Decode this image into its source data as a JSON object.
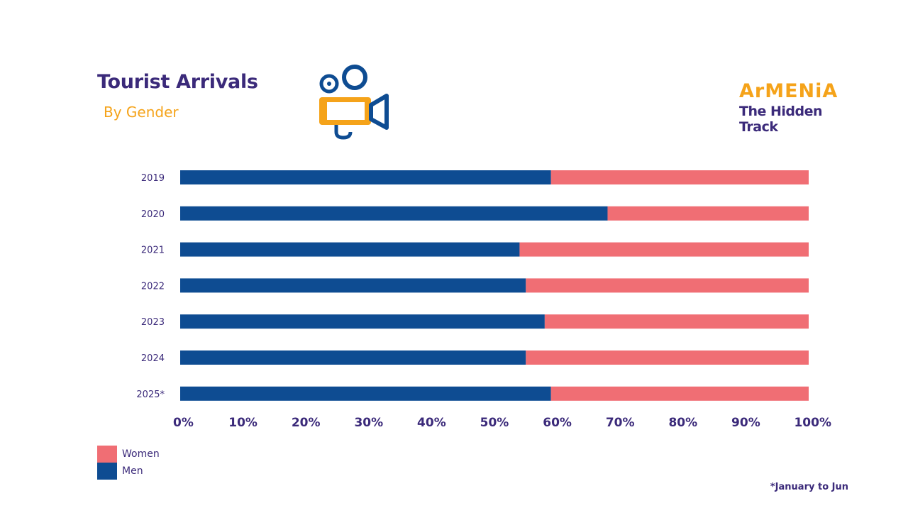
{
  "header": {
    "title": "Tourist Arrivals",
    "subtitle": "By Gender"
  },
  "brand": {
    "line1": "ArMENiA",
    "line2": "The Hidden",
    "line3": "Track",
    "icon": "film-camera-icon"
  },
  "colors": {
    "men": "#0e4c92",
    "women": "#f06e74",
    "accent": "#f5a31a",
    "text": "#3b2a7a"
  },
  "chart_data": {
    "type": "bar",
    "orientation": "horizontal",
    "stacked": true,
    "categories": [
      "2019",
      "2020",
      "2021",
      "2022",
      "2023",
      "2024",
      "2025*"
    ],
    "series": [
      {
        "name": "Men",
        "values": [
          59,
          68,
          54,
          55,
          58,
          55,
          59
        ]
      },
      {
        "name": "Women",
        "values": [
          41,
          32,
          46,
          45,
          42,
          45,
          41
        ]
      }
    ],
    "x_ticks": [
      "0%",
      "10%",
      "20%",
      "30%",
      "40%",
      "50%",
      "60%",
      "70%",
      "80%",
      "90%",
      "100%"
    ],
    "xlim": [
      0,
      100
    ],
    "grid": false,
    "legend_position": "bottom-left"
  },
  "legend": {
    "women": "Women",
    "men": "Men"
  },
  "footnote": "*January to Jun"
}
